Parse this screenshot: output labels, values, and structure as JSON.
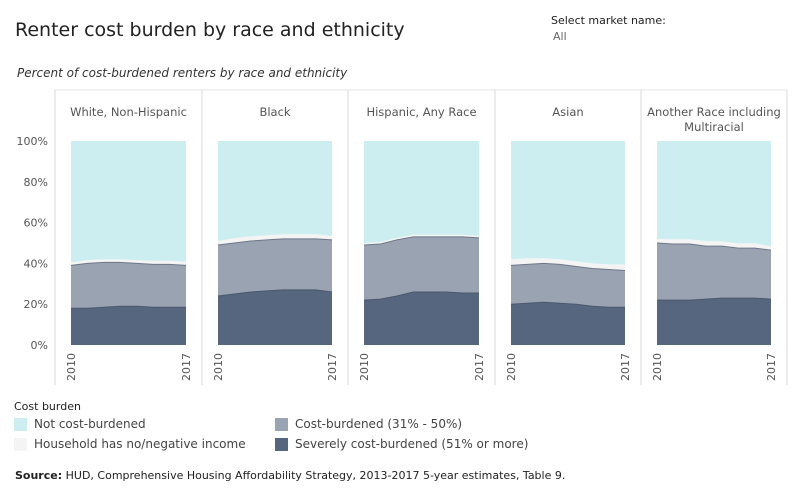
{
  "title": "Renter cost burden by race and ethnicity",
  "filter": {
    "label": "Select market name:",
    "value": "All"
  },
  "subtitle": "Percent of cost-burdened renters by race and ethnicity",
  "legend": {
    "title": "Cost burden",
    "items": [
      {
        "label": "Not cost-burdened",
        "color": "#cdeef0"
      },
      {
        "label": "Cost-burdened (31% - 50%)",
        "color": "#9aa3b2"
      },
      {
        "label": "Household has no/negative income",
        "color": "#f4f4f4"
      },
      {
        "label": "Severely cost-burdened (51% or more)",
        "color": "#56667e"
      }
    ]
  },
  "source": {
    "prefix": "Source:",
    "text": " HUD, Comprehensive Housing Affordability Strategy, 2013-2017 5-year estimates, Table 9."
  },
  "chart_data": {
    "type": "area",
    "stacked": true,
    "x": [
      2010,
      2011,
      2012,
      2013,
      2014,
      2015,
      2016,
      2017
    ],
    "x_tick_labels": [
      "2010",
      "2017"
    ],
    "y_ticks": [
      "0%",
      "20%",
      "40%",
      "60%",
      "80%",
      "100%"
    ],
    "ylim": [
      0,
      100
    ],
    "series_order": [
      "Severely cost-burdened (51% or more)",
      "Cost-burdened (31% - 50%)",
      "Household has no/negative income",
      "Not cost-burdened"
    ],
    "colors": [
      "#56667e",
      "#9aa3b2",
      "#f4f4f4",
      "#cdeef0"
    ],
    "panels": [
      {
        "name": "White, Non-Hispanic",
        "severe": [
          18,
          18,
          18.5,
          19,
          19,
          18.5,
          18.5,
          18.5
        ],
        "cost": [
          21,
          22,
          22,
          21.5,
          21,
          21,
          21,
          20.5
        ],
        "none": [
          1.5,
          1.5,
          1.5,
          1.5,
          1.5,
          1.8,
          1.8,
          1.8
        ]
      },
      {
        "name": "Black",
        "severe": [
          24,
          25,
          26,
          26.5,
          27,
          27,
          27,
          26
        ],
        "cost": [
          25,
          25,
          25,
          25,
          25,
          25,
          25,
          25.5
        ],
        "none": [
          2,
          2.3,
          2.3,
          2.3,
          2.3,
          2.3,
          2.3,
          2
        ]
      },
      {
        "name": "Hispanic, Any Race",
        "severe": [
          22,
          22.5,
          24,
          26,
          26,
          26,
          25.5,
          25.5
        ],
        "cost": [
          27,
          27,
          27.5,
          27,
          27,
          27,
          27.5,
          27
        ],
        "none": [
          1,
          1,
          1,
          1,
          1,
          1,
          1,
          1
        ]
      },
      {
        "name": "Asian",
        "severe": [
          20,
          20.5,
          21,
          20.5,
          20,
          19,
          18.5,
          18.5
        ],
        "cost": [
          19,
          19,
          19,
          19,
          18.5,
          18.5,
          18.5,
          18
        ],
        "none": [
          3,
          3,
          2.5,
          2.5,
          2.5,
          2.5,
          2.5,
          3
        ]
      },
      {
        "name": "Another Race including Multiracial",
        "severe": [
          22,
          22,
          22,
          22.5,
          23,
          23,
          23,
          22.5
        ],
        "cost": [
          28,
          27.5,
          27.5,
          26,
          25.5,
          24.5,
          24.5,
          24
        ],
        "none": [
          2,
          2.3,
          2.3,
          2.5,
          2.3,
          2.3,
          2.3,
          2
        ]
      }
    ]
  }
}
